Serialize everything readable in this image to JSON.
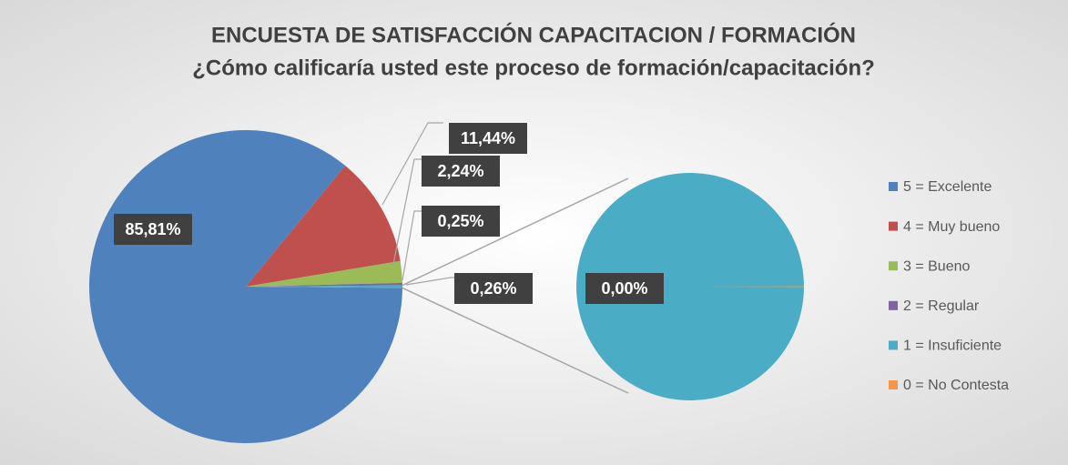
{
  "chart_data": {
    "type": "pie-of-pie",
    "title": "ENCUESTA DE SATISFACCIÓN CAPACITACION / FORMACIÓN",
    "subtitle": "¿Cómo calificaría usted este proceso de formación/capacitación?",
    "categories": [
      "5 = Excelente",
      "4 = Muy bueno",
      "3 = Bueno",
      "2 = Regular",
      "1 = Insuficiente",
      "0 = No Contesta"
    ],
    "values": [
      85.81,
      11.44,
      2.24,
      0.25,
      0.26,
      0.0
    ],
    "value_labels": [
      "85,81%",
      "11,44%",
      "2,24%",
      "0,25%",
      "0,26%",
      "0,00%"
    ],
    "colors": [
      "#4f81bd",
      "#c0504d",
      "#9bbb59",
      "#8064a2",
      "#4bacc6",
      "#f79646"
    ],
    "split_count": 2,
    "other": {
      "value": 0.26,
      "value_label": "0,26%"
    },
    "legend": "right"
  }
}
